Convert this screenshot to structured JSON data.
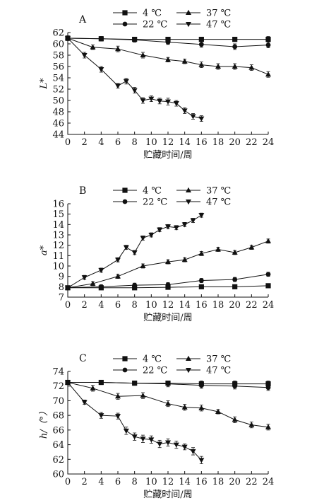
{
  "chart_data": [
    {
      "type": "line",
      "panel": "A",
      "ylabel": "L*",
      "xlabel": "贮藏时间/周",
      "xlim": [
        0,
        24
      ],
      "ylim": [
        44,
        62
      ],
      "xticks": [
        0,
        2,
        4,
        6,
        8,
        10,
        12,
        14,
        16,
        18,
        20,
        22,
        24
      ],
      "yticks": [
        44,
        46,
        48,
        50,
        52,
        54,
        56,
        58,
        60,
        62
      ],
      "legend": [
        "4 ℃",
        "37 ℃",
        "22 ℃",
        "47 ℃"
      ],
      "series": [
        {
          "name": "4 ℃",
          "marker": "square",
          "x": [
            0,
            4,
            8,
            12,
            16,
            20,
            24
          ],
          "y": [
            61.0,
            60.9,
            60.8,
            60.8,
            60.8,
            60.8,
            60.8
          ],
          "err": [
            0.4,
            0.4,
            0.4,
            0.4,
            0.4,
            0.4,
            0.5
          ]
        },
        {
          "name": "22 ℃",
          "marker": "circle",
          "x": [
            0,
            4,
            8,
            12,
            16,
            20,
            24
          ],
          "y": [
            61.0,
            60.9,
            60.7,
            60.3,
            59.9,
            59.5,
            59.8
          ],
          "err": [
            0.4,
            0.4,
            0.4,
            0.4,
            0.5,
            0.5,
            0.5
          ]
        },
        {
          "name": "37 ℃",
          "marker": "triangle",
          "x": [
            0,
            3,
            6,
            9,
            12,
            14,
            16,
            18,
            20,
            22,
            24
          ],
          "y": [
            61.0,
            59.4,
            59.1,
            58.0,
            57.2,
            56.9,
            56.3,
            56.0,
            56.0,
            55.8,
            54.6
          ],
          "err": [
            0.4,
            0.4,
            0.5,
            0.5,
            0.4,
            0.4,
            0.5,
            0.5,
            0.5,
            0.5,
            0.5
          ]
        },
        {
          "name": "47 ℃",
          "marker": "triangle-down",
          "x": [
            0,
            2,
            4,
            6,
            7,
            8,
            9,
            10,
            11,
            12,
            13,
            14,
            15,
            16
          ],
          "y": [
            61.0,
            58.0,
            55.5,
            52.6,
            53.4,
            51.8,
            50.0,
            50.3,
            49.9,
            49.8,
            49.5,
            48.2,
            47.2,
            46.8
          ],
          "err": [
            0.4,
            0.5,
            0.5,
            0.4,
            0.5,
            0.5,
            0.5,
            0.5,
            0.5,
            0.6,
            0.5,
            0.5,
            0.5,
            0.5
          ]
        }
      ]
    },
    {
      "type": "line",
      "panel": "B",
      "ylabel": "a*",
      "xlabel": "贮藏时间/周",
      "xlim": [
        0,
        24
      ],
      "ylim": [
        7,
        16
      ],
      "xticks": [
        0,
        2,
        4,
        6,
        8,
        10,
        12,
        14,
        16,
        18,
        20,
        22,
        24
      ],
      "yticks": [
        7,
        8,
        9,
        10,
        11,
        12,
        13,
        14,
        15,
        16
      ],
      "legend": [
        "4 ℃",
        "37 ℃",
        "22 ℃",
        "47 ℃"
      ],
      "series": [
        {
          "name": "4 ℃",
          "marker": "square",
          "x": [
            0,
            4,
            8,
            12,
            16,
            20,
            24
          ],
          "y": [
            7.9,
            7.9,
            7.9,
            7.95,
            8.0,
            8.0,
            8.1
          ],
          "err": [
            0.15,
            0.15,
            0.15,
            0.15,
            0.15,
            0.15,
            0.15
          ]
        },
        {
          "name": "22 ℃",
          "marker": "circle",
          "x": [
            0,
            4,
            8,
            12,
            16,
            20,
            24
          ],
          "y": [
            7.9,
            8.0,
            8.15,
            8.2,
            8.6,
            8.7,
            9.2
          ],
          "err": [
            0.15,
            0.2,
            0.2,
            0.2,
            0.2,
            0.2,
            0.2
          ]
        },
        {
          "name": "37 ℃",
          "marker": "triangle",
          "x": [
            0,
            3,
            6,
            9,
            12,
            14,
            16,
            18,
            20,
            22,
            24
          ],
          "y": [
            7.9,
            8.3,
            9.0,
            10.0,
            10.4,
            10.6,
            11.2,
            11.6,
            11.3,
            11.8,
            12.4
          ],
          "err": [
            0.15,
            0.2,
            0.2,
            0.2,
            0.2,
            0.2,
            0.2,
            0.2,
            0.2,
            0.2,
            0.2
          ]
        },
        {
          "name": "47 ℃",
          "marker": "triangle-down",
          "x": [
            0,
            2,
            4,
            6,
            7,
            8,
            9,
            10,
            11,
            12,
            13,
            14,
            15,
            16
          ],
          "y": [
            7.9,
            8.9,
            9.6,
            10.6,
            11.8,
            11.3,
            12.7,
            13.0,
            13.5,
            13.8,
            13.7,
            14.0,
            14.4,
            14.9
          ],
          "err": [
            0.15,
            0.2,
            0.2,
            0.2,
            0.2,
            0.2,
            0.2,
            0.2,
            0.2,
            0.2,
            0.2,
            0.2,
            0.2,
            0.2
          ]
        }
      ]
    },
    {
      "type": "line",
      "panel": "C",
      "ylabel": "h/（°）",
      "xlabel": "贮藏时间/周",
      "xlim": [
        0,
        24
      ],
      "ylim": [
        60,
        74
      ],
      "xticks": [
        0,
        2,
        4,
        6,
        8,
        10,
        12,
        14,
        16,
        18,
        20,
        22,
        24
      ],
      "yticks": [
        60,
        62,
        64,
        66,
        68,
        70,
        72,
        74
      ],
      "legend": [
        "4 ℃",
        "37 ℃",
        "22 ℃",
        "47 ℃"
      ],
      "series": [
        {
          "name": "4 ℃",
          "marker": "square",
          "x": [
            0,
            4,
            8,
            12,
            16,
            20,
            24
          ],
          "y": [
            72.5,
            72.5,
            72.4,
            72.4,
            72.3,
            72.3,
            72.3
          ],
          "err": [
            0.3,
            0.3,
            0.3,
            0.3,
            0.4,
            0.4,
            0.4
          ]
        },
        {
          "name": "22 ℃",
          "marker": "circle",
          "x": [
            0,
            4,
            8,
            12,
            16,
            20,
            24
          ],
          "y": [
            72.5,
            72.5,
            72.4,
            72.3,
            72.1,
            72.0,
            71.8
          ],
          "err": [
            0.3,
            0.3,
            0.3,
            0.4,
            0.4,
            0.4,
            0.4
          ]
        },
        {
          "name": "37 ℃",
          "marker": "triangle",
          "x": [
            0,
            3,
            6,
            9,
            12,
            14,
            16,
            18,
            20,
            22,
            24
          ],
          "y": [
            72.5,
            71.7,
            70.6,
            70.7,
            69.6,
            69.1,
            69.0,
            68.5,
            67.4,
            66.7,
            66.4
          ],
          "err": [
            0.3,
            0.4,
            0.4,
            0.4,
            0.4,
            0.4,
            0.4,
            0.3,
            0.4,
            0.4,
            0.4
          ]
        },
        {
          "name": "47 ℃",
          "marker": "triangle-down",
          "x": [
            0,
            2,
            4,
            6,
            7,
            8,
            9,
            10,
            11,
            12,
            13,
            14,
            15,
            16
          ],
          "y": [
            72.5,
            69.8,
            68.0,
            67.9,
            65.9,
            65.1,
            64.8,
            64.7,
            64.1,
            64.3,
            64.0,
            63.7,
            63.1,
            61.9
          ],
          "err": [
            0.3,
            0.3,
            0.4,
            0.4,
            0.5,
            0.5,
            0.5,
            0.5,
            0.5,
            0.5,
            0.5,
            0.4,
            0.5,
            0.5
          ]
        }
      ]
    }
  ]
}
